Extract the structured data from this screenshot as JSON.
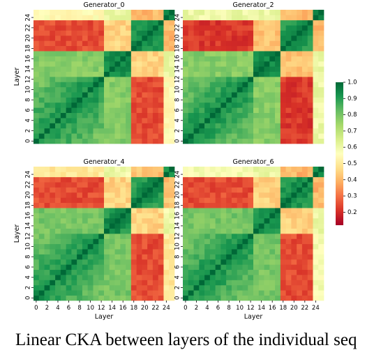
{
  "chart_data": {
    "type": "heatmap",
    "colormap": "RdYlGn",
    "vmin": 0.12,
    "vmax": 1.0,
    "layers": 26,
    "xlabel": "Layer",
    "ylabel": "Layer",
    "x_ticks": [
      0,
      2,
      4,
      6,
      8,
      10,
      12,
      14,
      16,
      18,
      20,
      22,
      24
    ],
    "y_ticks": [
      0,
      2,
      4,
      6,
      8,
      10,
      12,
      14,
      16,
      18,
      20,
      22,
      24
    ],
    "colorbar_ticks": [
      0.2,
      0.3,
      0.4,
      0.5,
      0.6,
      0.7,
      0.8,
      0.9,
      1.0
    ],
    "colorbar_labels": [
      "0.2",
      "0.3",
      "0.4",
      "0.5",
      "0.6",
      "0.7",
      "0.8",
      "0.9",
      "1.0"
    ],
    "panels": [
      {
        "title": "Generator_0",
        "block_values": [
          [
            0.93,
            0.78,
            0.25,
            0.55
          ],
          [
            0.78,
            0.95,
            0.45,
            0.6
          ],
          [
            0.25,
            0.45,
            0.95,
            0.4
          ],
          [
            0.55,
            0.6,
            0.4,
            0.95
          ]
        ]
      },
      {
        "title": "Generator_2",
        "block_values": [
          [
            0.93,
            0.78,
            0.22,
            0.6
          ],
          [
            0.78,
            0.95,
            0.42,
            0.6
          ],
          [
            0.22,
            0.42,
            0.95,
            0.4
          ],
          [
            0.6,
            0.6,
            0.4,
            0.95
          ]
        ]
      },
      {
        "title": "Generator_4",
        "block_values": [
          [
            0.93,
            0.8,
            0.25,
            0.5
          ],
          [
            0.8,
            0.95,
            0.45,
            0.6
          ],
          [
            0.25,
            0.45,
            0.95,
            0.42
          ],
          [
            0.5,
            0.6,
            0.42,
            0.95
          ]
        ]
      },
      {
        "title": "Generator_6",
        "block_values": [
          [
            0.93,
            0.8,
            0.25,
            0.58
          ],
          [
            0.8,
            0.95,
            0.45,
            0.6
          ],
          [
            0.25,
            0.45,
            0.95,
            0.4
          ],
          [
            0.58,
            0.6,
            0.4,
            0.95
          ]
        ]
      }
    ],
    "layer_groups": [
      [
        0,
        12
      ],
      [
        13,
        17
      ],
      [
        18,
        23
      ],
      [
        24,
        25
      ]
    ]
  },
  "caption": "Linear CKA between layers of the individual seq"
}
